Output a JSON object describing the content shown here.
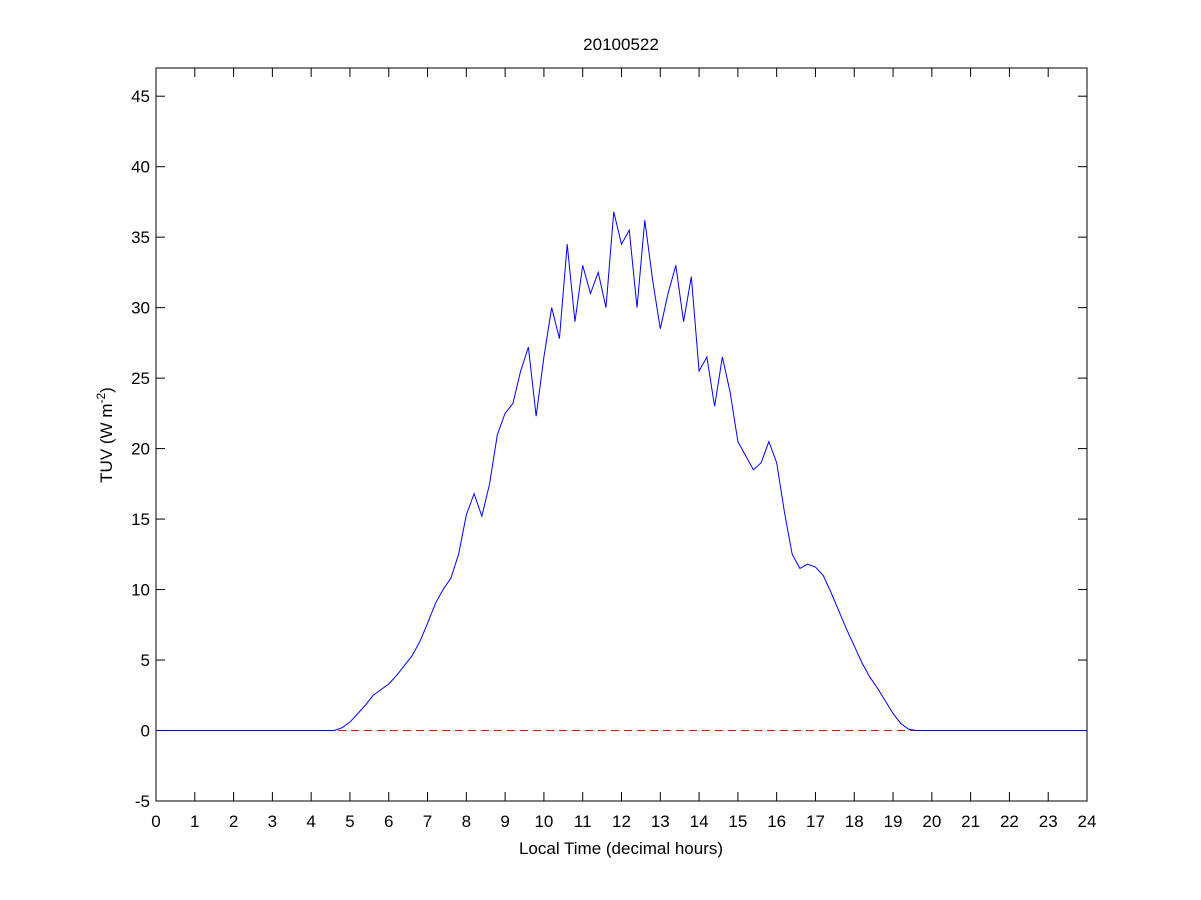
{
  "chart_data": {
    "type": "line",
    "title": "20100522",
    "xlabel": "Local Time (decimal hours)",
    "ylabel": {
      "text": "TUV (W m",
      "superscript": "-2",
      "suffix": ")"
    },
    "xlim": [
      0,
      24
    ],
    "ylim": [
      -5,
      47
    ],
    "xticks": [
      0,
      1,
      2,
      3,
      4,
      5,
      6,
      7,
      8,
      9,
      10,
      11,
      12,
      13,
      14,
      15,
      16,
      17,
      18,
      19,
      20,
      21,
      22,
      23,
      24
    ],
    "yticks": [
      -5,
      0,
      5,
      10,
      15,
      20,
      25,
      30,
      35,
      40,
      45
    ],
    "grid": false,
    "reference_line": {
      "value": 0,
      "color": "#ff0000",
      "style": "dashed"
    },
    "series": [
      {
        "color": "#0000ff",
        "x": [
          0,
          1,
          2,
          3,
          4,
          4.6,
          4.8,
          5.0,
          5.2,
          5.4,
          5.6,
          5.8,
          6.0,
          6.2,
          6.4,
          6.6,
          6.8,
          7.0,
          7.2,
          7.4,
          7.6,
          7.8,
          8.0,
          8.2,
          8.4,
          8.6,
          8.8,
          9.0,
          9.2,
          9.4,
          9.6,
          9.8,
          10.0,
          10.2,
          10.4,
          10.6,
          10.8,
          11.0,
          11.2,
          11.4,
          11.6,
          11.8,
          12.0,
          12.2,
          12.4,
          12.6,
          12.8,
          13.0,
          13.2,
          13.4,
          13.6,
          13.8,
          14.0,
          14.2,
          14.4,
          14.6,
          14.8,
          15.0,
          15.2,
          15.4,
          15.6,
          15.8,
          16.0,
          16.2,
          16.4,
          16.6,
          16.8,
          17.0,
          17.2,
          17.4,
          17.6,
          17.8,
          18.0,
          18.2,
          18.4,
          18.6,
          18.8,
          19.0,
          19.2,
          19.4,
          19.6,
          19.8,
          20,
          21,
          22,
          23,
          24
        ],
        "values": [
          0,
          0,
          0,
          0,
          0,
          0,
          0.2,
          0.6,
          1.2,
          1.8,
          2.5,
          2.9,
          3.3,
          3.9,
          4.6,
          5.3,
          6.3,
          7.6,
          9.0,
          10.0,
          10.8,
          12.5,
          15.3,
          16.8,
          15.2,
          17.5,
          21.0,
          22.5,
          23.2,
          25.5,
          27.2,
          22.3,
          26.5,
          30.0,
          27.8,
          34.5,
          29.0,
          33.0,
          31.0,
          32.5,
          30.0,
          36.8,
          34.5,
          35.5,
          30.0,
          36.2,
          32.0,
          28.5,
          31.0,
          33.0,
          29.0,
          32.2,
          25.5,
          26.5,
          23.0,
          26.5,
          24.0,
          20.5,
          19.5,
          18.5,
          19.0,
          20.5,
          19.0,
          15.5,
          12.5,
          11.5,
          11.8,
          11.6,
          11.0,
          9.8,
          8.5,
          7.2,
          6.0,
          4.8,
          3.8,
          3.0,
          2.1,
          1.2,
          0.5,
          0.1,
          0,
          0,
          0,
          0,
          0,
          0,
          0
        ]
      }
    ]
  }
}
